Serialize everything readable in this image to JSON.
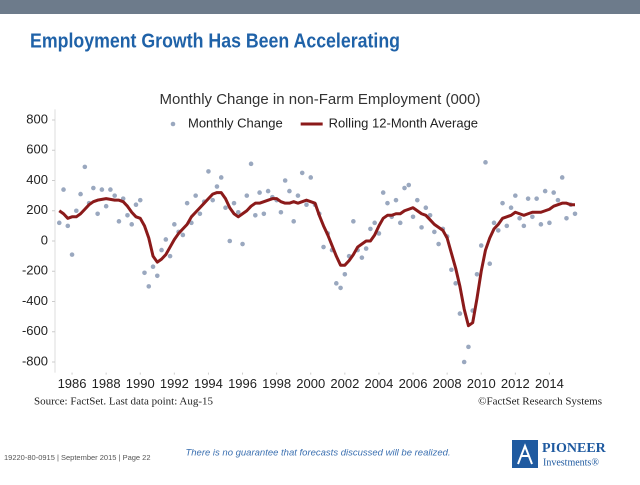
{
  "header": {
    "title": "Employment Growth Has Been Accelerating"
  },
  "chart_data": {
    "type": "scatter_line",
    "title": "Monthly Change in non-Farm Employment (000)",
    "legend": "top",
    "xlim": [
      1985,
      2015.5
    ],
    "xticks": [
      1986,
      1988,
      1990,
      1992,
      1994,
      1996,
      1998,
      2000,
      2002,
      2004,
      2006,
      2008,
      2010,
      2012,
      2014
    ],
    "ylim": [
      -870,
      870
    ],
    "yticks": [
      800,
      600,
      400,
      200,
      0,
      -200,
      -400,
      -600,
      -800
    ],
    "x": [
      1985.25,
      1985.5,
      1985.75,
      1986,
      1986.25,
      1986.5,
      1986.75,
      1987,
      1987.25,
      1987.5,
      1987.75,
      1988,
      1988.25,
      1988.5,
      1988.75,
      1989,
      1989.25,
      1989.5,
      1989.75,
      1990,
      1990.25,
      1990.5,
      1990.75,
      1991,
      1991.25,
      1991.5,
      1991.75,
      1992,
      1992.25,
      1992.5,
      1992.75,
      1993,
      1993.25,
      1993.5,
      1993.75,
      1994,
      1994.25,
      1994.5,
      1994.75,
      1995,
      1995.25,
      1995.5,
      1995.75,
      1996,
      1996.25,
      1996.5,
      1996.75,
      1997,
      1997.25,
      1997.5,
      1997.75,
      1998,
      1998.25,
      1998.5,
      1998.75,
      1999,
      1999.25,
      1999.5,
      1999.75,
      2000,
      2000.25,
      2000.5,
      2000.75,
      2001,
      2001.25,
      2001.5,
      2001.75,
      2002,
      2002.25,
      2002.5,
      2002.75,
      2003,
      2003.25,
      2003.5,
      2003.75,
      2004,
      2004.25,
      2004.5,
      2004.75,
      2005,
      2005.25,
      2005.5,
      2005.75,
      2006,
      2006.25,
      2006.5,
      2006.75,
      2007,
      2007.25,
      2007.5,
      2007.75,
      2008,
      2008.25,
      2008.5,
      2008.75,
      2009,
      2009.25,
      2009.5,
      2009.75,
      2010,
      2010.25,
      2010.5,
      2010.75,
      2011,
      2011.25,
      2011.5,
      2011.75,
      2012,
      2012.25,
      2012.5,
      2012.75,
      2013,
      2013.25,
      2013.5,
      2013.75,
      2014,
      2014.25,
      2014.5,
      2014.75,
      2015,
      2015.25,
      2015.5
    ],
    "series": [
      {
        "name": "Monthly Change",
        "kind": "scatter",
        "color": "#9aa8bf",
        "values": [
          120,
          340,
          100,
          -90,
          200,
          310,
          490,
          250,
          350,
          180,
          340,
          230,
          340,
          300,
          130,
          280,
          170,
          110,
          240,
          270,
          -210,
          -300,
          -170,
          -230,
          -60,
          10,
          -100,
          110,
          60,
          40,
          250,
          120,
          300,
          180,
          260,
          460,
          270,
          360,
          420,
          220,
          0,
          250,
          190,
          -20,
          300,
          510,
          170,
          320,
          180,
          330,
          290,
          270,
          190,
          400,
          330,
          130,
          300,
          450,
          240,
          420,
          240,
          180,
          -40,
          50,
          -60,
          -280,
          -310,
          -220,
          -100,
          130,
          -60,
          -110,
          -50,
          80,
          120,
          50,
          320,
          250,
          160,
          270,
          120,
          350,
          370,
          160,
          270,
          90,
          220,
          170,
          60,
          -20,
          80,
          30,
          -190,
          -280,
          -480,
          -800,
          -700,
          -460,
          -220,
          -30,
          520,
          -150,
          120,
          70,
          250,
          100,
          220,
          300,
          150,
          100,
          280,
          160,
          280,
          110,
          330,
          120,
          320,
          270,
          420,
          150,
          240,
          180
        ]
      },
      {
        "name": "Rolling 12-Month Average",
        "kind": "line",
        "color": "#8b1a1a",
        "values": [
          200,
          180,
          150,
          160,
          160,
          180,
          210,
          240,
          260,
          270,
          275,
          280,
          275,
          270,
          270,
          260,
          230,
          190,
          160,
          150,
          100,
          20,
          -100,
          -140,
          -120,
          -90,
          -40,
          10,
          50,
          80,
          110,
          160,
          190,
          220,
          250,
          280,
          310,
          320,
          320,
          280,
          220,
          180,
          160,
          180,
          200,
          230,
          250,
          250,
          260,
          270,
          280,
          280,
          260,
          250,
          250,
          260,
          250,
          260,
          270,
          260,
          250,
          170,
          100,
          40,
          -30,
          -100,
          -160,
          -160,
          -130,
          -90,
          -40,
          -20,
          0,
          0,
          40,
          100,
          150,
          170,
          170,
          180,
          180,
          200,
          210,
          220,
          200,
          180,
          170,
          140,
          110,
          90,
          70,
          20,
          -80,
          -180,
          -300,
          -450,
          -560,
          -540,
          -380,
          -200,
          -60,
          20,
          80,
          110,
          150,
          160,
          170,
          190,
          180,
          170,
          180,
          190,
          190,
          190,
          200,
          210,
          230,
          240,
          250,
          250,
          240,
          240
        ]
      }
    ]
  },
  "source": "Source: FactSet. Last data point: Aug-15",
  "copyright": "©FactSet Research Systems",
  "footer": {
    "code": "19220-80-0915 | September 2015 | Page 22",
    "disclaimer": "There is no guarantee that forecasts discussed will be realized."
  },
  "logo": {
    "name": "PIONEER",
    "tagline": "Investments®"
  }
}
